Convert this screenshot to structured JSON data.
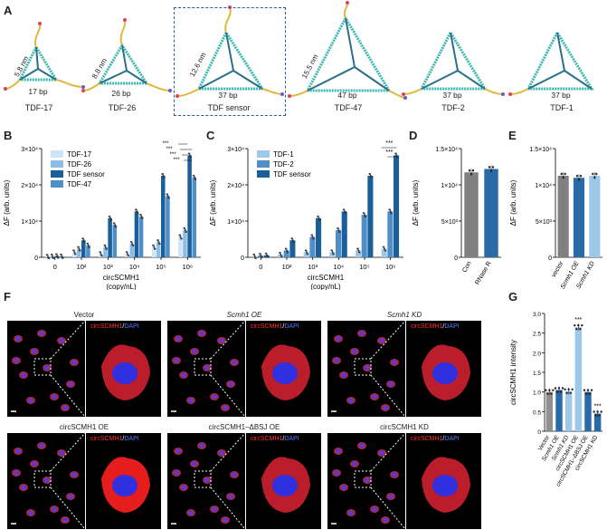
{
  "panels": {
    "A": "A",
    "B": "B",
    "C": "C",
    "D": "D",
    "E": "E",
    "F": "F",
    "G": "G"
  },
  "panelA": {
    "structures": [
      {
        "name": "TDF-17",
        "bp": "17 bp",
        "nm": "5.8 nm"
      },
      {
        "name": "TDF-26",
        "bp": "26 bp",
        "nm": "8.8 nm"
      },
      {
        "name": "TDF sensor",
        "bp": "37 bp",
        "nm": "12.6 nm"
      },
      {
        "name": "TDF-47",
        "bp": "47 bp",
        "nm": "15.5 nm"
      },
      {
        "name": "TDF-2",
        "bp": "37 bp",
        "nm": ""
      },
      {
        "name": "TDF-1",
        "bp": "37 bp",
        "nm": ""
      }
    ]
  },
  "colors": {
    "c17": "#cfe4f5",
    "c26": "#8cbde6",
    "csensor": "#1a5f9a",
    "c47": "#4f8fc9",
    "grey": "#808080",
    "dark": "#2a6aa7",
    "light": "#9cc8ea"
  },
  "chart_data": [
    {
      "id": "B",
      "type": "bar",
      "ylabel": "ΔF (arb. units)",
      "xlabel": "circSCMH1",
      "xlabel2": "(copy/nL)",
      "categories": [
        "0",
        "10²",
        "10³",
        "10⁴",
        "10⁵",
        "10⁶"
      ],
      "yticks": [
        "0",
        "1×10⁴",
        "2×10⁴",
        "3×10⁴"
      ],
      "ylim": [
        0,
        32000
      ],
      "series": [
        {
          "name": "TDF-17",
          "values": [
            200,
            1500,
            1000,
            1000,
            3000,
            6000
          ]
        },
        {
          "name": "TDF-26",
          "values": [
            300,
            2500,
            3000,
            4000,
            4500,
            8000
          ]
        },
        {
          "name": "TDF sensor",
          "values": [
            400,
            5000,
            11500,
            13500,
            24000,
            30000
          ]
        },
        {
          "name": "TDF-47",
          "values": [
            300,
            3500,
            9500,
            12000,
            18000,
            23500
          ]
        }
      ],
      "annotations": [
        "***",
        "***",
        "***",
        "***"
      ]
    },
    {
      "id": "C",
      "type": "bar",
      "ylabel": "ΔF (arb. units)",
      "xlabel": "circSCMH1",
      "xlabel2": "(copy/nL)",
      "categories": [
        "0",
        "10²",
        "10³",
        "10⁴",
        "10⁵",
        "10⁶"
      ],
      "yticks": [
        "0",
        "1×10⁴",
        "2×10⁴",
        "3×10⁴"
      ],
      "ylim": [
        0,
        32000
      ],
      "series": [
        {
          "name": "TDF-1",
          "values": [
            300,
            800,
            1500,
            1500,
            2000,
            2500
          ]
        },
        {
          "name": "TDF-2",
          "values": [
            500,
            2000,
            6000,
            8000,
            12500,
            13500
          ]
        },
        {
          "name": "TDF sensor",
          "values": [
            600,
            5000,
            11500,
            13500,
            24000,
            30000
          ]
        }
      ],
      "annotations": [
        "***",
        "***"
      ]
    },
    {
      "id": "D",
      "type": "bar",
      "ylabel": "ΔF (arb. units)",
      "categories": [
        "Con",
        "RNase R"
      ],
      "yticks": [
        "0",
        "5×10³",
        "1×10⁴",
        "1.5×10⁴"
      ],
      "ylim": [
        0,
        16000
      ],
      "values": [
        12500,
        13000
      ]
    },
    {
      "id": "E",
      "type": "bar",
      "ylabel": "ΔF (arb. units)",
      "categories": [
        "vector",
        "Scmh1 OE",
        "Scmh1 KD"
      ],
      "yticks": [
        "0",
        "5×10³",
        "1×10⁴",
        "1.5×10⁴"
      ],
      "ylim": [
        0,
        16000
      ],
      "values": [
        12000,
        11700,
        12000
      ]
    },
    {
      "id": "G",
      "type": "bar",
      "ylabel": "circSCMH1 intensity",
      "categories": [
        "Vector",
        "Scmh1 OE",
        "Scmh1 KD",
        "circSCMH1 OE",
        "circSCMH1–ΔBSJ OE",
        "circSCMH1 KD"
      ],
      "yticks": [
        "0",
        "0.5",
        "1.0",
        "1.5",
        "2.0",
        "2.5",
        "3.0"
      ],
      "ylim": [
        0,
        3.0
      ],
      "values": [
        1.0,
        1.05,
        1.02,
        2.65,
        1.0,
        0.45
      ],
      "annotations": [
        "",
        "",
        "",
        "***",
        "",
        "***"
      ]
    }
  ],
  "panelF": {
    "stain_red": "circSCMH1",
    "stain_sep": "/",
    "stain_blue": "DAPI",
    "conditions": [
      "Vector",
      "Scmh1 OE",
      "Scmh1 KD",
      "circSCMH1 OE",
      "circSCMH1–ΔBSJ OE",
      "circSCMH1 KD"
    ]
  }
}
